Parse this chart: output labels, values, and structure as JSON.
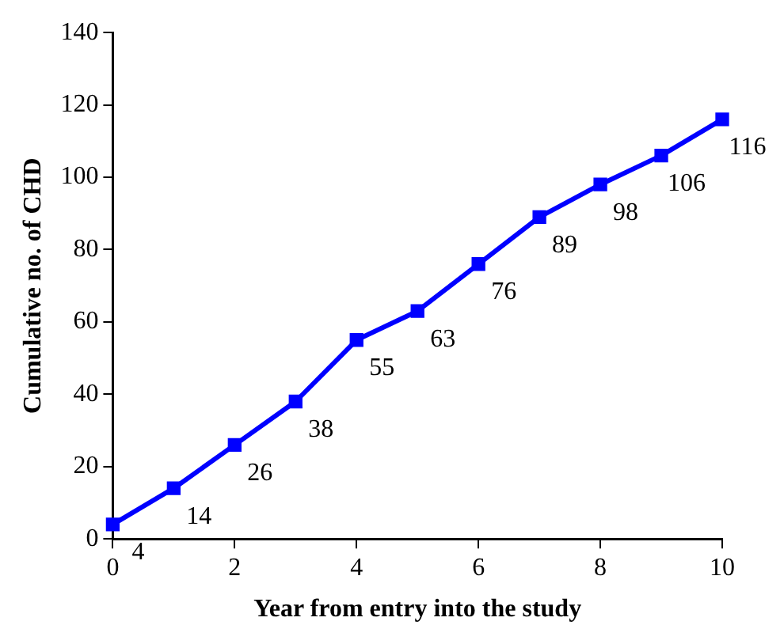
{
  "chart_data": {
    "type": "line",
    "xlabel": "Year from entry into the study",
    "ylabel": "Cumulative no. of CHD",
    "x": [
      0,
      1,
      2,
      3,
      4,
      5,
      6,
      7,
      8,
      9,
      10
    ],
    "series": [
      {
        "color": "#0000ff",
        "values": [
          4,
          14,
          26,
          38,
          55,
          63,
          76,
          89,
          98,
          106,
          116
        ]
      }
    ],
    "xlim": [
      0,
      10
    ],
    "xticks": [
      0,
      2,
      4,
      6,
      8,
      10
    ],
    "ylim": [
      0,
      140
    ],
    "yticks": [
      0,
      20,
      40,
      60,
      80,
      100,
      120,
      140
    ],
    "grid": false,
    "legend": false,
    "marker": "square",
    "line_style": "solid",
    "data_labels": true
  }
}
